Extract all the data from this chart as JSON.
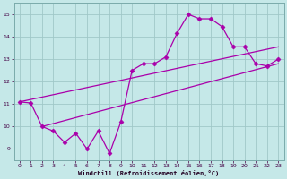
{
  "title": "",
  "xlabel": "Windchill (Refroidissement éolien,°C)",
  "ylabel": "",
  "bg_color": "#c5e8e8",
  "grid_color": "#a0c8c8",
  "line_color": "#aa00aa",
  "marker_color": "#aa00aa",
  "xlim": [
    -0.5,
    23.5
  ],
  "ylim": [
    8.5,
    15.5
  ],
  "yticks": [
    9,
    10,
    11,
    12,
    13,
    14,
    15
  ],
  "xticks": [
    0,
    1,
    2,
    3,
    4,
    5,
    6,
    7,
    8,
    9,
    10,
    11,
    12,
    13,
    14,
    15,
    16,
    17,
    18,
    19,
    20,
    21,
    22,
    23
  ],
  "jagged_x": [
    0,
    1,
    2,
    3,
    4,
    5,
    6,
    7,
    8,
    9,
    10,
    11,
    12,
    13,
    14,
    15,
    16,
    17,
    18,
    19,
    20,
    21,
    22,
    23
  ],
  "jagged_y": [
    11.1,
    11.05,
    10.0,
    9.8,
    9.3,
    9.7,
    9.0,
    9.8,
    8.8,
    10.2,
    12.5,
    12.8,
    12.8,
    13.1,
    14.15,
    15.0,
    14.8,
    14.8,
    14.45,
    13.55,
    13.55,
    12.8,
    12.7,
    13.0
  ],
  "upper_line_x": [
    0,
    23
  ],
  "upper_line_y": [
    11.1,
    13.55
  ],
  "lower_line_x": [
    2,
    23
  ],
  "lower_line_y": [
    10.0,
    12.8
  ]
}
